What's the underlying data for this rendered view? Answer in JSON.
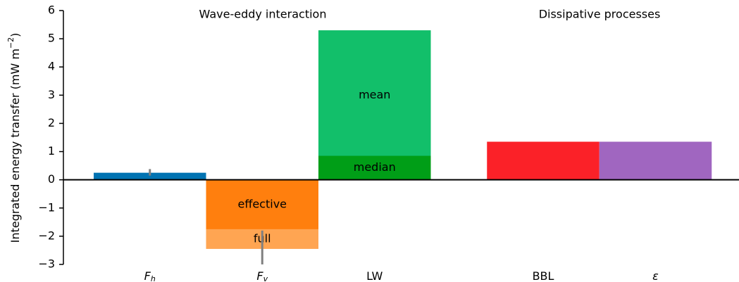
{
  "chart_data": {
    "type": "bar",
    "ylabel": {
      "text": "Integrated energy transfer (mW m",
      "sup": "−2",
      "end": ")"
    },
    "group_titles": [
      "Wave-eddy interaction",
      "Dissipative processes"
    ],
    "ylim": [
      -3,
      6
    ],
    "yticks": [
      {
        "value": -3,
        "label": "−3"
      },
      {
        "value": -2,
        "label": "−2"
      },
      {
        "value": -1,
        "label": "−1"
      },
      0,
      1,
      2,
      3,
      4,
      5,
      6
    ],
    "bars": [
      {
        "label": {
          "main": "F",
          "sub": "h"
        },
        "segments": [
          {
            "value": 0.25,
            "color": "#0173b2"
          }
        ],
        "error": {
          "low": 0.15,
          "high": 0.38
        }
      },
      {
        "label": {
          "main": "F",
          "sub": "v"
        },
        "segments": [
          {
            "value": -2.45,
            "color": "#ffa552",
            "text": "full"
          },
          {
            "value": -1.75,
            "color": "#ff7f0e",
            "text": "effective"
          }
        ],
        "error": {
          "low": -3.0,
          "high": -1.8
        }
      },
      {
        "label": {
          "main": "LW"
        },
        "segments": [
          {
            "value": 5.3,
            "color": "#12bf6a",
            "text": "mean"
          },
          {
            "value": 0.85,
            "color": "#009e17",
            "text": "median"
          }
        ]
      },
      {
        "label": {
          "main": "BBL"
        },
        "segments": [
          {
            "value": 1.35,
            "color": "#fb2128"
          }
        ]
      },
      {
        "label": {
          "main": "ε"
        },
        "segments": [
          {
            "value": 1.35,
            "color": "#a066c0"
          }
        ]
      }
    ]
  }
}
